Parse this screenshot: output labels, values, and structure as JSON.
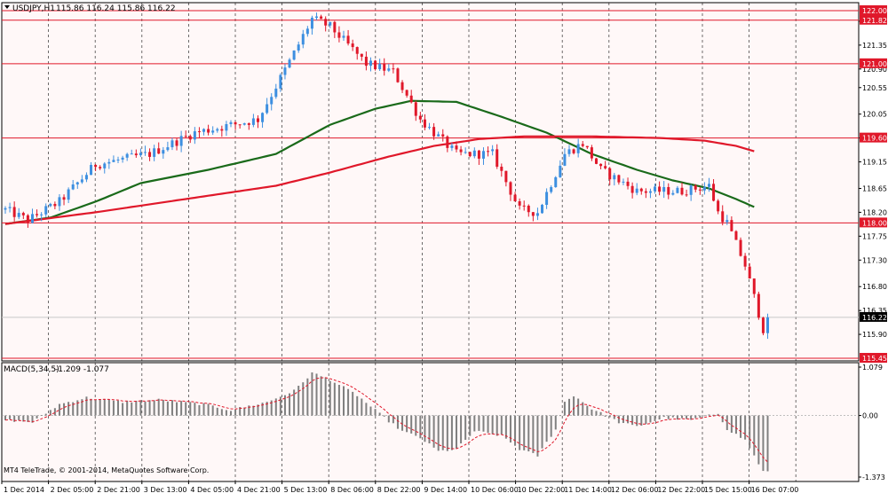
{
  "header": {
    "symbol": "USDJPY,H1",
    "ohlc": "115.86 116.24 115.86 116.22"
  },
  "colors": {
    "background": "#ffffff",
    "plot_background": "#fff8f8",
    "frame": "#000000",
    "grid": "#000000",
    "bull_candle": "#3d8fe0",
    "bear_candle": "#e0182a",
    "level_line": "#e0182a",
    "ma_fast": "#1a6a1a",
    "ma_slow": "#e0182a",
    "price_line": "#c8c8c8",
    "macd_hist": "#808080",
    "macd_signal": "#e0182a"
  },
  "chart_data": {
    "type": "candlestick",
    "x_labels": [
      "1 Dec 2014",
      "2 Dec 05:00",
      "2 Dec 21:00",
      "3 Dec 13:00",
      "4 Dec 05:00",
      "4 Dec 21:00",
      "5 Dec 13:00",
      "8 Dec 06:00",
      "8 Dec 22:00",
      "9 Dec 14:00",
      "10 Dec 06:00",
      "10 Dec 22:00",
      "11 Dec 14:00",
      "12 Dec 06:00",
      "12 Dec 22:00",
      "15 Dec 15:00",
      "16 Dec 07:00"
    ],
    "y_ticks": [
      "121.80",
      "121.35",
      "120.90",
      "120.55",
      "120.05",
      "119.60",
      "119.15",
      "118.65",
      "118.20",
      "117.75",
      "117.30",
      "116.80",
      "116.35",
      "115.90"
    ],
    "ylim": [
      115.4,
      122.15
    ],
    "current_price": "116.22",
    "levels": [
      {
        "label": "122.00",
        "value": 122.0
      },
      {
        "label": "121.82",
        "value": 121.82
      },
      {
        "label": "121.00",
        "value": 121.0
      },
      {
        "label": "119.60",
        "value": 119.6
      },
      {
        "label": "118.00",
        "value": 118.0
      },
      {
        "label": "115.45",
        "value": 115.45
      }
    ],
    "candle_count": 170,
    "price_path": [
      [
        0,
        118.25
      ],
      [
        5,
        118.05
      ],
      [
        12,
        118.4
      ],
      [
        20,
        119.1
      ],
      [
        32,
        119.3
      ],
      [
        42,
        119.7
      ],
      [
        56,
        119.95
      ],
      [
        64,
        121.2
      ],
      [
        68,
        121.85
      ],
      [
        72,
        121.7
      ],
      [
        80,
        121.0
      ],
      [
        86,
        120.85
      ],
      [
        92,
        119.95
      ],
      [
        95,
        119.7
      ],
      [
        100,
        119.3
      ],
      [
        104,
        119.3
      ],
      [
        108,
        119.3
      ],
      [
        114,
        118.25
      ],
      [
        118,
        118.2
      ],
      [
        124,
        119.3
      ],
      [
        128,
        119.5
      ],
      [
        132,
        119.0
      ],
      [
        140,
        118.6
      ],
      [
        150,
        118.6
      ],
      [
        156,
        118.7
      ],
      [
        158,
        118.2
      ],
      [
        160,
        118.0
      ],
      [
        164,
        117.2
      ],
      [
        168,
        116.0
      ],
      [
        169,
        116.22
      ]
    ],
    "series": [
      {
        "name": "",
        "role": "moving-average-fast",
        "points": [
          [
            0,
            117.98
          ],
          [
            10,
            118.1
          ],
          [
            20,
            118.4
          ],
          [
            30,
            118.75
          ],
          [
            45,
            119.0
          ],
          [
            60,
            119.3
          ],
          [
            72,
            119.85
          ],
          [
            82,
            120.15
          ],
          [
            90,
            120.3
          ],
          [
            100,
            120.28
          ],
          [
            110,
            120.0
          ],
          [
            120,
            119.7
          ],
          [
            130,
            119.3
          ],
          [
            140,
            119.0
          ],
          [
            148,
            118.8
          ],
          [
            156,
            118.65
          ],
          [
            162,
            118.45
          ],
          [
            166,
            118.3
          ]
        ]
      },
      {
        "name": "",
        "role": "moving-average-slow",
        "points": [
          [
            0,
            117.98
          ],
          [
            20,
            118.2
          ],
          [
            40,
            118.45
          ],
          [
            60,
            118.7
          ],
          [
            72,
            118.95
          ],
          [
            85,
            119.25
          ],
          [
            95,
            119.45
          ],
          [
            105,
            119.58
          ],
          [
            115,
            119.63
          ],
          [
            130,
            119.63
          ],
          [
            145,
            119.6
          ],
          [
            155,
            119.55
          ],
          [
            162,
            119.45
          ],
          [
            166,
            119.35
          ]
        ]
      }
    ],
    "indicator": {
      "name": "MACD(5,34,5)",
      "values_text": "-1.209 -1.077",
      "ticks": [
        "1.079",
        "0.00",
        "-1.373"
      ],
      "ylim": [
        -1.373,
        1.079
      ],
      "histogram_path": [
        [
          0,
          -0.1
        ],
        [
          6,
          -0.15
        ],
        [
          12,
          0.25
        ],
        [
          18,
          0.4
        ],
        [
          26,
          0.3
        ],
        [
          34,
          0.35
        ],
        [
          44,
          0.25
        ],
        [
          50,
          0.12
        ],
        [
          58,
          0.3
        ],
        [
          64,
          0.55
        ],
        [
          68,
          0.95
        ],
        [
          72,
          0.8
        ],
        [
          78,
          0.45
        ],
        [
          84,
          -0.05
        ],
        [
          88,
          -0.35
        ],
        [
          92,
          -0.5
        ],
        [
          96,
          -0.8
        ],
        [
          100,
          -0.75
        ],
        [
          104,
          -0.35
        ],
        [
          110,
          -0.45
        ],
        [
          114,
          -0.75
        ],
        [
          118,
          -0.9
        ],
        [
          122,
          -0.3
        ],
        [
          124,
          0.3
        ],
        [
          126,
          0.45
        ],
        [
          130,
          0.15
        ],
        [
          136,
          -0.15
        ],
        [
          140,
          -0.25
        ],
        [
          146,
          -0.05
        ],
        [
          152,
          -0.1
        ],
        [
          158,
          0.05
        ],
        [
          160,
          -0.3
        ],
        [
          164,
          -0.55
        ],
        [
          168,
          -1.25
        ]
      ]
    }
  },
  "footer": {
    "copyright": "MT4 TeleTrade, © 2001-2014, MetaQuotes Software Corp."
  }
}
